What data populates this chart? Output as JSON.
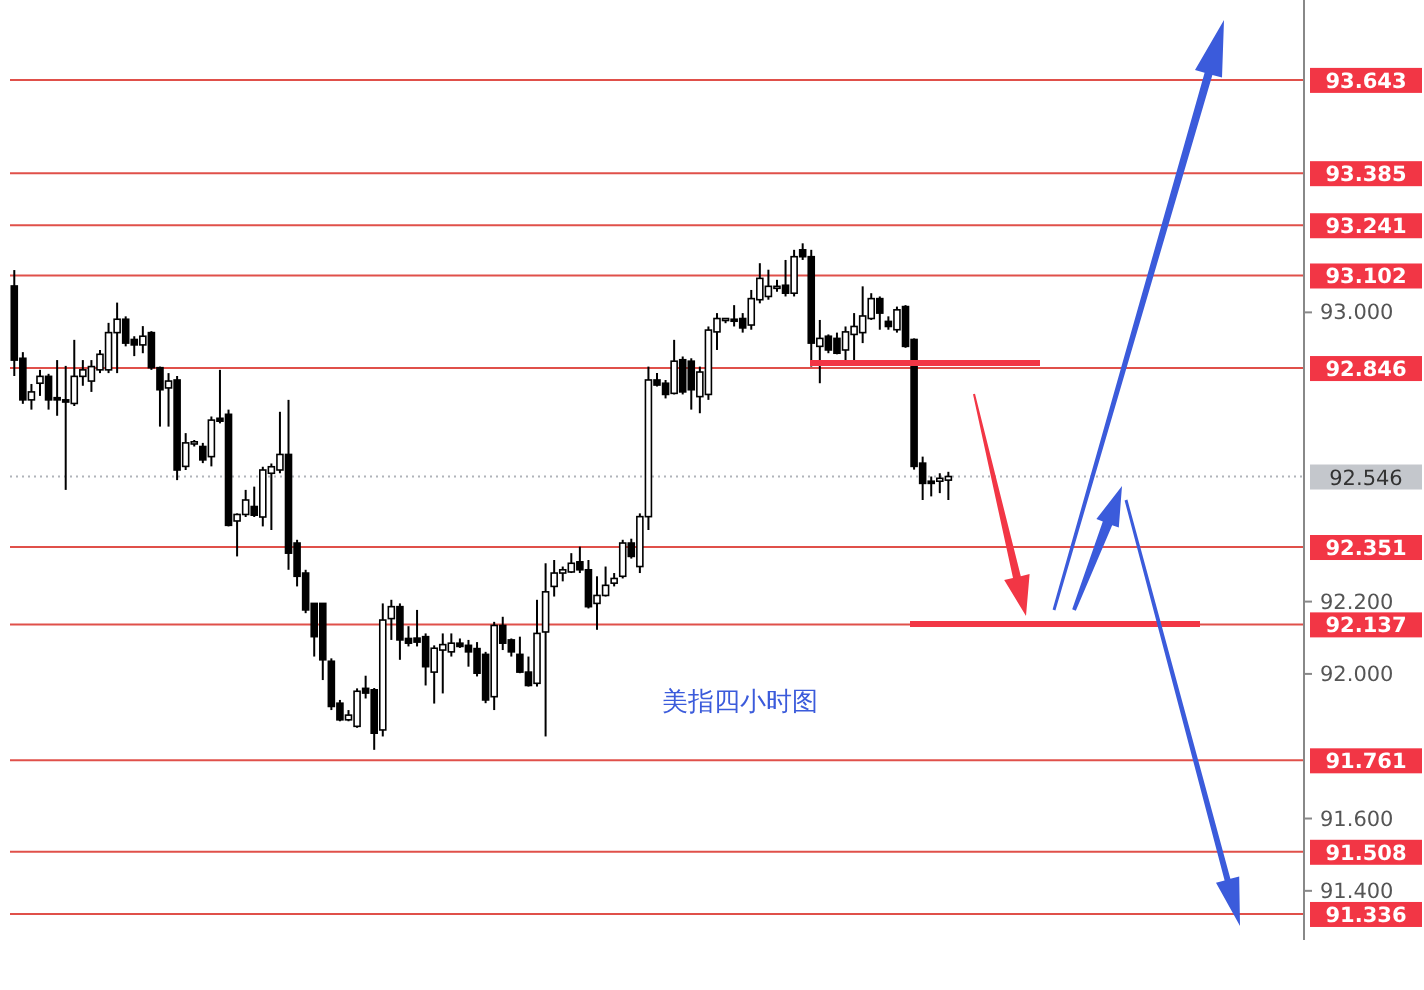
{
  "chart_data": {
    "type": "candlestick",
    "categories": [
      null,
      null,
      null,
      null,
      null,
      null,
      null,
      null,
      null,
      null,
      null,
      null,
      null,
      null,
      null,
      null,
      null,
      null,
      null,
      null,
      null,
      null,
      null,
      null,
      null,
      null,
      null,
      null,
      null,
      null,
      null,
      null,
      null,
      null,
      null,
      null,
      null,
      null,
      null,
      null,
      null,
      null,
      null,
      null,
      null,
      null,
      null,
      null,
      null,
      null,
      null,
      null,
      null,
      null,
      null,
      null,
      null,
      null,
      null,
      null,
      null,
      null,
      null,
      null,
      null,
      null,
      null,
      null,
      null,
      null,
      null,
      null,
      null,
      null,
      null,
      null,
      null,
      null,
      null,
      null,
      null,
      null,
      null,
      null,
      null,
      null,
      null,
      null,
      null,
      null,
      null,
      null,
      null,
      null,
      null,
      null,
      null,
      null,
      null,
      null,
      null,
      null,
      null,
      null,
      null,
      null,
      null,
      null,
      null,
      null,
      null,
      null,
      null,
      null,
      null,
      null,
      null,
      null,
      null,
      null,
      null,
      null,
      null,
      null,
      null,
      null,
      null,
      null,
      null,
      null,
      null,
      null,
      null,
      null,
      null,
      null,
      null,
      null,
      null,
      null,
      null,
      null,
      null,
      null,
      null,
      null,
      null,
      null,
      null,
      null,
      null
    ],
    "ohlc": [
      [
        93.073,
        93.117,
        92.824,
        92.868
      ],
      [
        92.873,
        92.89,
        92.747,
        92.758
      ],
      [
        92.758,
        92.802,
        92.731,
        92.78
      ],
      [
        92.804,
        92.841,
        92.769,
        92.823
      ],
      [
        92.823,
        92.83,
        92.731,
        92.758
      ],
      [
        92.764,
        92.868,
        92.714,
        92.758
      ],
      [
        92.758,
        92.852,
        92.509,
        92.752
      ],
      [
        92.748,
        92.924,
        92.741,
        92.823
      ],
      [
        92.823,
        92.868,
        92.797,
        92.841
      ],
      [
        92.81,
        92.868,
        92.78,
        92.85
      ],
      [
        92.841,
        92.896,
        92.832,
        92.884
      ],
      [
        92.841,
        92.971,
        92.832,
        92.944
      ],
      [
        92.944,
        93.027,
        92.832,
        92.981
      ],
      [
        92.981,
        92.989,
        92.906,
        92.915
      ],
      [
        92.925,
        92.934,
        92.879,
        92.91
      ],
      [
        92.91,
        92.962,
        92.887,
        92.934
      ],
      [
        92.944,
        92.948,
        92.841,
        92.847
      ],
      [
        92.847,
        92.85,
        92.684,
        92.786
      ],
      [
        92.791,
        92.832,
        92.684,
        92.81
      ],
      [
        92.813,
        92.824,
        92.536,
        92.564
      ],
      [
        92.574,
        92.666,
        92.564,
        92.639
      ],
      [
        92.636,
        92.647,
        92.629,
        92.642
      ],
      [
        92.629,
        92.639,
        92.583,
        92.592
      ],
      [
        92.601,
        92.712,
        92.574,
        92.702
      ],
      [
        92.707,
        92.841,
        92.693,
        92.699
      ],
      [
        92.718,
        92.731,
        92.408,
        92.411
      ],
      [
        92.423,
        92.444,
        92.325,
        92.441
      ],
      [
        92.441,
        92.509,
        92.434,
        92.481
      ],
      [
        92.463,
        92.518,
        92.434,
        92.439
      ],
      [
        92.434,
        92.573,
        92.408,
        92.564
      ],
      [
        92.555,
        92.582,
        92.398,
        92.573
      ],
      [
        92.564,
        92.725,
        92.555,
        92.607
      ],
      [
        92.607,
        92.758,
        92.288,
        92.334
      ],
      [
        92.362,
        92.371,
        92.242,
        92.27
      ],
      [
        92.279,
        92.288,
        92.168,
        92.177
      ],
      [
        92.195,
        92.195,
        92.048,
        92.103
      ],
      [
        92.195,
        92.195,
        91.983,
        92.039
      ],
      [
        92.035,
        92.043,
        91.9,
        91.91
      ],
      [
        91.919,
        91.928,
        91.869,
        91.873
      ],
      [
        91.873,
        91.9,
        91.869,
        91.886
      ],
      [
        91.855,
        91.96,
        91.851,
        91.952
      ],
      [
        91.96,
        91.995,
        91.932,
        91.947
      ],
      [
        91.956,
        91.961,
        91.79,
        91.836
      ],
      [
        91.845,
        92.195,
        91.827,
        92.149
      ],
      [
        92.153,
        92.205,
        92.094,
        92.186
      ],
      [
        92.186,
        92.195,
        92.039,
        92.094
      ],
      [
        92.098,
        92.132,
        92.076,
        92.085
      ],
      [
        92.099,
        92.177,
        92.076,
        92.088
      ],
      [
        92.103,
        92.112,
        91.968,
        92.02
      ],
      [
        92.005,
        92.079,
        91.918,
        92.071
      ],
      [
        92.066,
        92.112,
        91.946,
        92.081
      ],
      [
        92.061,
        92.112,
        92.048,
        92.085
      ],
      [
        92.085,
        92.098,
        92.072,
        92.076
      ],
      [
        92.079,
        92.094,
        92.02,
        92.061
      ],
      [
        92.07,
        92.088,
        91.993,
        92.002
      ],
      [
        92.054,
        92.061,
        91.919,
        91.928
      ],
      [
        91.937,
        92.144,
        91.9,
        92.134
      ],
      [
        92.134,
        92.158,
        92.066,
        92.085
      ],
      [
        92.094,
        92.098,
        92.048,
        92.061
      ],
      [
        92.054,
        92.103,
        92.002,
        92.005
      ],
      [
        92.005,
        92.048,
        91.965,
        91.968
      ],
      [
        91.974,
        92.205,
        91.965,
        92.112
      ],
      [
        92.116,
        92.306,
        91.827,
        92.227
      ],
      [
        92.242,
        92.315,
        92.214,
        92.279
      ],
      [
        92.279,
        92.297,
        92.256,
        92.288
      ],
      [
        92.282,
        92.334,
        92.279,
        92.306
      ],
      [
        92.31,
        92.352,
        92.279,
        92.288
      ],
      [
        92.288,
        92.315,
        92.181,
        92.186
      ],
      [
        92.195,
        92.27,
        92.122,
        92.217
      ],
      [
        92.217,
        92.297,
        92.214,
        92.245
      ],
      [
        92.251,
        92.279,
        92.242,
        92.264
      ],
      [
        92.27,
        92.371,
        92.264,
        92.362
      ],
      [
        92.362,
        92.374,
        92.319,
        92.325
      ],
      [
        92.297,
        92.444,
        92.279,
        92.435
      ],
      [
        92.435,
        92.85,
        92.398,
        92.813
      ],
      [
        92.813,
        92.832,
        92.795,
        92.799
      ],
      [
        92.804,
        92.813,
        92.762,
        92.773
      ],
      [
        92.776,
        92.924,
        92.773,
        92.865
      ],
      [
        92.869,
        92.878,
        92.773,
        92.78
      ],
      [
        92.865,
        92.873,
        92.731,
        92.786
      ],
      [
        92.767,
        92.85,
        92.721,
        92.835
      ],
      [
        92.773,
        92.961,
        92.758,
        92.951
      ],
      [
        92.946,
        92.998,
        92.896,
        92.983
      ],
      [
        92.979,
        92.983,
        92.97,
        92.983
      ],
      [
        92.981,
        93.02,
        92.961,
        92.978
      ],
      [
        92.983,
        92.998,
        92.944,
        92.957
      ],
      [
        92.965,
        93.062,
        92.952,
        93.038
      ],
      [
        93.035,
        93.136,
        93.025,
        93.094
      ],
      [
        93.044,
        93.118,
        93.035,
        93.072
      ],
      [
        93.068,
        93.09,
        93.057,
        93.072
      ],
      [
        93.075,
        93.145,
        93.044,
        93.053
      ],
      [
        93.053,
        93.173,
        93.044,
        93.154
      ],
      [
        93.173,
        93.191,
        93.145,
        93.154
      ],
      [
        93.154,
        93.173,
        92.85,
        92.915
      ],
      [
        92.906,
        92.979,
        92.804,
        92.928
      ],
      [
        92.934,
        92.939,
        92.887,
        92.896
      ],
      [
        92.928,
        92.944,
        92.884,
        92.887
      ],
      [
        92.896,
        92.961,
        92.859,
        92.946
      ],
      [
        92.939,
        92.998,
        92.859,
        92.961
      ],
      [
        92.944,
        93.072,
        92.915,
        92.99
      ],
      [
        92.983,
        93.053,
        92.979,
        93.038
      ],
      [
        93.038,
        93.044,
        92.952,
        92.998
      ],
      [
        92.975,
        92.989,
        92.952,
        92.961
      ],
      [
        92.952,
        93.016,
        92.944,
        93.007
      ],
      [
        93.016,
        93.02,
        92.902,
        92.906
      ],
      [
        92.925,
        92.928,
        92.565,
        92.574
      ],
      [
        92.583,
        92.601,
        92.481,
        92.527
      ],
      [
        92.533,
        92.546,
        92.491,
        92.527
      ],
      [
        92.533,
        92.555,
        92.5,
        92.541
      ],
      [
        92.536,
        92.559,
        92.481,
        92.546
      ],
      null,
      null,
      null,
      null,
      null,
      null,
      null,
      null,
      null,
      null,
      null,
      null,
      null,
      null,
      null,
      null,
      null,
      null,
      null,
      null,
      null,
      null,
      null,
      null,
      null,
      null,
      null,
      null,
      null,
      null,
      null,
      null,
      null,
      null,
      null,
      null,
      null,
      null,
      null,
      null,
      null
    ],
    "ylim": [
      91.264,
      93.864
    ],
    "yticks": [
      {
        "value": 91.4,
        "label": "91.400"
      },
      {
        "value": 91.6,
        "label": "91.600"
      },
      {
        "value": 92.0,
        "label": "92.000"
      },
      {
        "value": 92.2,
        "label": "92.200"
      },
      {
        "value": 93.0,
        "label": "93.000"
      }
    ],
    "ref_lines": [
      {
        "axis": "y",
        "value": 93.643,
        "label": "93.643",
        "color": "#e0504a"
      },
      {
        "axis": "y",
        "value": 93.385,
        "label": "93.385",
        "color": "#e0504a"
      },
      {
        "axis": "y",
        "value": 93.241,
        "label": "93.241",
        "color": "#e0504a"
      },
      {
        "axis": "y",
        "value": 93.102,
        "label": "93.102",
        "color": "#e0504a"
      },
      {
        "axis": "y",
        "value": 92.846,
        "label": "92.846",
        "color": "#e0504a"
      },
      {
        "axis": "y",
        "value": 92.546,
        "label": "92.546",
        "color": "#b0b4ba",
        "line_style": "dotted"
      },
      {
        "axis": "y",
        "value": 92.351,
        "label": "92.351",
        "color": "#e0504a"
      },
      {
        "axis": "y",
        "value": 92.137,
        "label": "92.137",
        "color": "#e0504a"
      },
      {
        "axis": "y",
        "value": 91.761,
        "label": "91.761",
        "color": "#e0504a"
      },
      {
        "axis": "y",
        "value": 91.508,
        "label": "91.508",
        "color": "#e0504a"
      },
      {
        "axis": "y",
        "value": 91.336,
        "label": "91.336",
        "color": "#e0504a"
      }
    ],
    "annotations": [
      "美指四小时图"
    ]
  }
}
